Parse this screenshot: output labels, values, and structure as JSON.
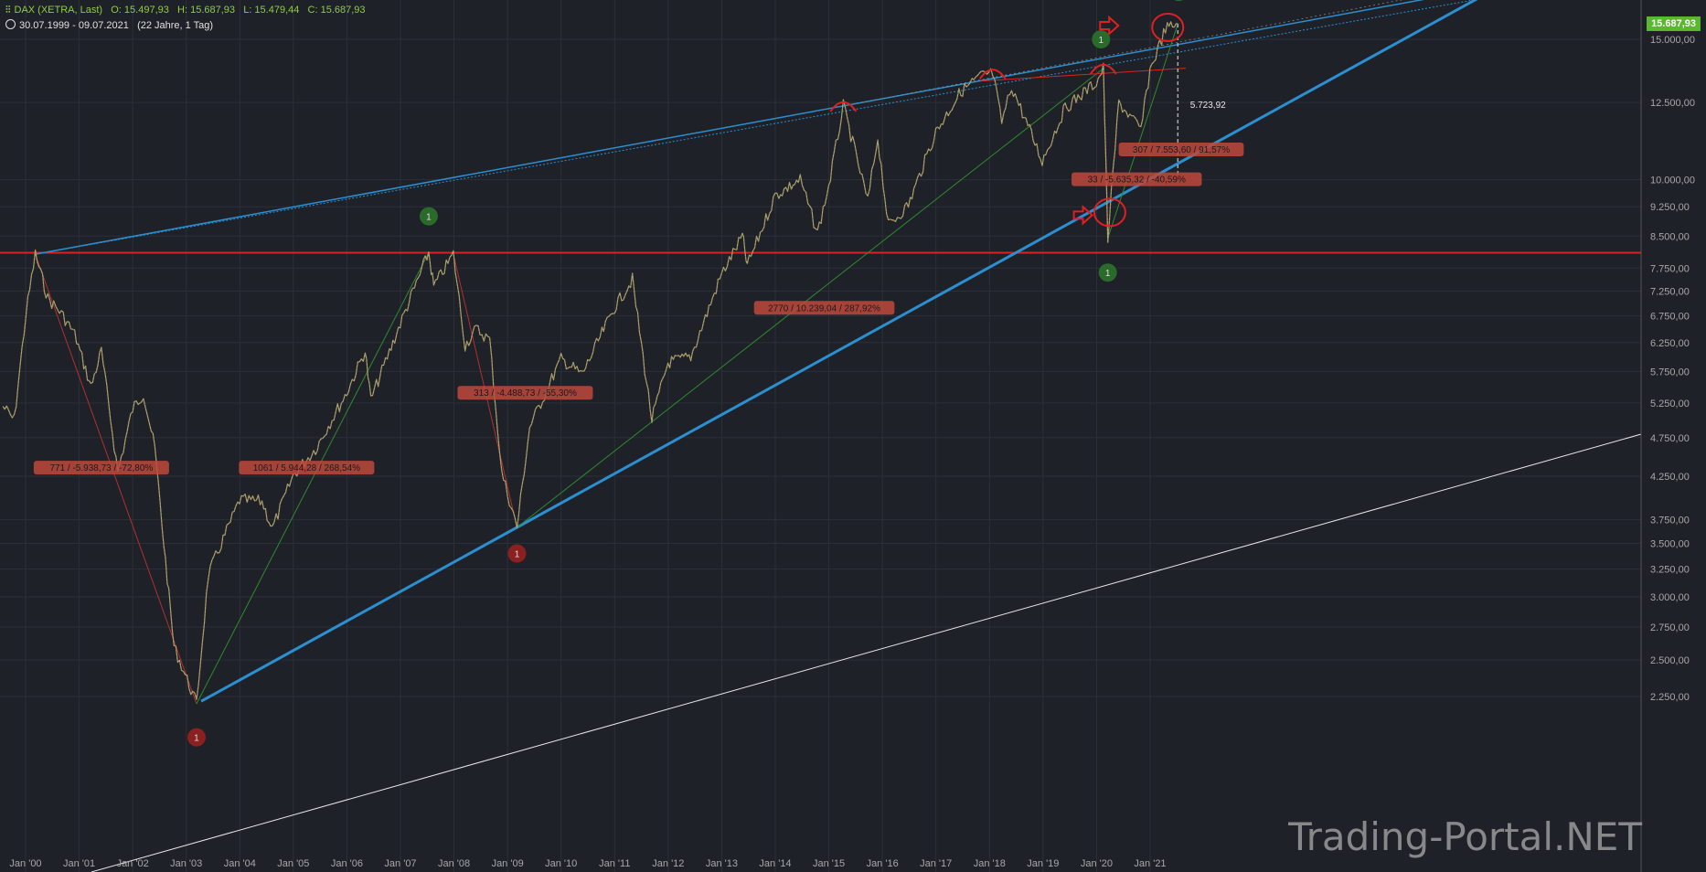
{
  "header": {
    "instrument": "DAX (XETRA, Last)",
    "open": "O: 15.497,93",
    "high": "H: 15.687,93",
    "low": "L: 15.479,44",
    "close": "C: 15.687,93",
    "range": "30.07.1999 - 09.07.2021",
    "period": "(22 Jahre, 1 Tag)"
  },
  "last_price_label": "15.687,93",
  "watermark": "Trading-Portal.NET",
  "colors": {
    "background": "#1e2128",
    "grid": "#2a2e36",
    "channel_blue": "#2b8fd0",
    "resistance_red": "#e02020",
    "last_price_green": "#58b82e",
    "label_bg": "#c0483c"
  },
  "chart_data": {
    "type": "line",
    "title": "DAX (XETRA, Last)",
    "log_scale": true,
    "grid": true,
    "ylim": [
      2100,
      17000
    ],
    "xlim": [
      "1999-07-30",
      "2021-12-31"
    ],
    "x_ticks": [
      "Jan '00",
      "Jan '01",
      "Jan '02",
      "Jan '03",
      "Jan '04",
      "Jan '05",
      "Jan '06",
      "Jan '07",
      "Jan '08",
      "Jan '09",
      "Jan '10",
      "Jan '11",
      "Jan '12",
      "Jan '13",
      "Jan '14",
      "Jan '15",
      "Jan '16",
      "Jan '17",
      "Jan '18",
      "Jan '19",
      "Jan '20",
      "Jan '21"
    ],
    "y_ticks": [
      "2.250,00",
      "2.500,00",
      "2.750,00",
      "3.000,00",
      "3.250,00",
      "3.500,00",
      "3.750,00",
      "4.250,00",
      "4.750,00",
      "5.250,00",
      "5.750,00",
      "6.250,00",
      "6.750,00",
      "7.250,00",
      "7.750,00",
      "8.500,00",
      "9.250,00",
      "10.000,00",
      "12.500,00",
      "15.000,00"
    ],
    "series": [
      {
        "x": [
          "1999-07-30",
          "1999-10-15",
          "2000-01-04",
          "2000-03-07",
          "2000-06-01",
          "2000-09-01",
          "2000-12-01",
          "2001-03-22",
          "2001-06-01",
          "2001-09-21",
          "2001-12-31",
          "2002-03-15",
          "2002-06-01",
          "2002-08-01",
          "2002-10-09",
          "2003-03-12",
          "2003-06-01",
          "2003-12-31",
          "2004-06-01",
          "2004-08-10",
          "2004-12-31",
          "2005-06-01",
          "2005-12-31",
          "2006-05-05",
          "2006-06-13",
          "2006-12-31",
          "2007-07-13",
          "2007-08-16",
          "2007-12-28",
          "2008-03-17",
          "2008-06-01",
          "2008-09-01",
          "2008-11-21",
          "2009-03-06",
          "2009-06-01",
          "2009-12-31",
          "2010-05-25",
          "2010-12-31",
          "2011-05-02",
          "2011-09-12",
          "2011-12-31",
          "2012-06-04",
          "2012-12-31",
          "2013-05-22",
          "2013-06-24",
          "2013-12-31",
          "2014-06-20",
          "2014-10-16",
          "2014-12-31",
          "2015-04-10",
          "2015-09-24",
          "2015-12-01",
          "2016-02-11",
          "2016-06-27",
          "2016-12-31",
          "2017-06-19",
          "2017-11-07",
          "2018-01-23",
          "2018-03-26",
          "2018-06-01",
          "2018-12-27",
          "2019-06-01",
          "2019-12-31",
          "2020-02-17",
          "2020-03-18",
          "2020-06-01",
          "2020-10-30",
          "2020-12-31",
          "2021-04-16",
          "2021-07-09"
        ],
        "y": [
          5200,
          5000,
          6800,
          8065,
          7100,
          6800,
          6400,
          5500,
          6100,
          4300,
          5160,
          5400,
          4600,
          3500,
          2600,
          2203,
          3200,
          3965,
          3950,
          3650,
          4260,
          4600,
          5410,
          6100,
          5300,
          6600,
          8105,
          7350,
          8067,
          6200,
          6500,
          6300,
          4300,
          3666,
          4900,
          5960,
          5700,
          6914,
          7500,
          5000,
          5898,
          6000,
          7612,
          8500,
          7800,
          9552,
          10000,
          8572,
          9805,
          12375,
          9400,
          11300,
          8752,
          9300,
          11481,
          12900,
          13500,
          13597,
          11800,
          13100,
          10559,
          12300,
          13249,
          13789,
          8442,
          12500,
          11556,
          13718,
          15459,
          15688
        ]
      }
    ],
    "levels": [
      {
        "label": "resistance",
        "y": 8100
      }
    ],
    "annotations": [
      "771 / -5.938,73 / -72,80%",
      "1061 / 5.944,28 / 268,54%",
      "313 / -4.488,73 / -55,30%",
      "2770 / 10.239,04 / 287,92%",
      "307 / 7.553,60 / 91,57%",
      "33 / -5.635,32 / -40,59%",
      "5.723,92"
    ],
    "markers": [
      "1",
      "1",
      "1",
      "1",
      "1",
      "1"
    ]
  }
}
